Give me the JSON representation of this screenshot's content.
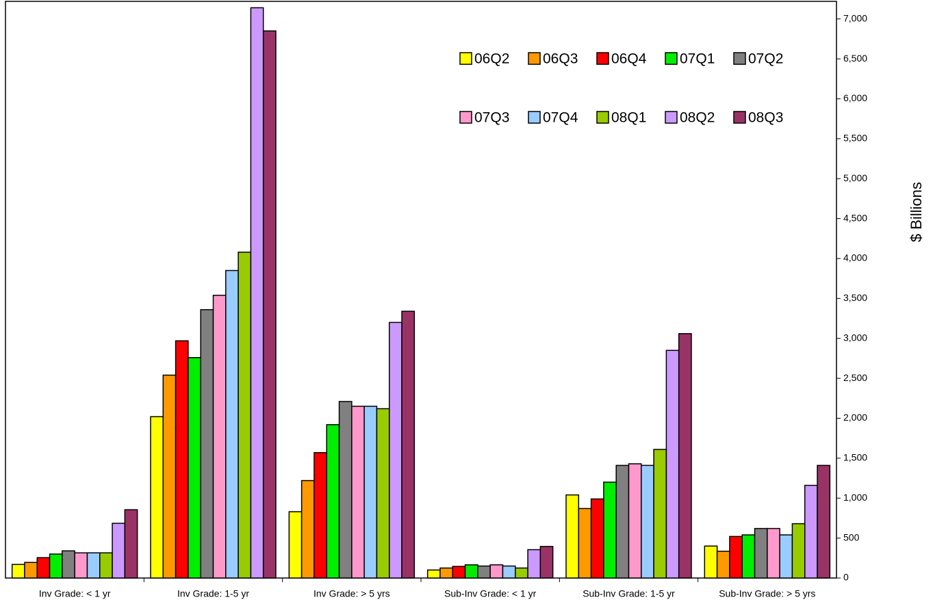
{
  "chart_data": {
    "type": "bar",
    "y_label": "$ Billions",
    "categories": [
      "Inv Grade: < 1 yr",
      "Inv Grade: 1-5 yr",
      "Inv Grade: > 5 yrs",
      "Sub-Inv Grade: < 1 yr",
      "Sub-Inv Grade: 1-5 yr",
      "Sub-Inv Grade: > 5 yrs"
    ],
    "series": [
      {
        "name": "06Q2",
        "color": "#ffff00",
        "values": [
          170,
          2020,
          830,
          100,
          1040,
          400
        ]
      },
      {
        "name": "06Q3",
        "color": "#ff9900",
        "values": [
          195,
          2540,
          1220,
          125,
          870,
          335
        ]
      },
      {
        "name": "06Q4",
        "color": "#ff0000",
        "values": [
          255,
          2970,
          1570,
          145,
          990,
          520
        ]
      },
      {
        "name": "07Q1",
        "color": "#00ee00",
        "values": [
          300,
          2760,
          1920,
          165,
          1200,
          540
        ]
      },
      {
        "name": "07Q2",
        "color": "#808080",
        "values": [
          340,
          3360,
          2210,
          150,
          1410,
          620
        ]
      },
      {
        "name": "07Q3",
        "color": "#ff99cc",
        "values": [
          315,
          3540,
          2150,
          165,
          1430,
          620
        ]
      },
      {
        "name": "07Q4",
        "color": "#99ccff",
        "values": [
          315,
          3850,
          2150,
          150,
          1410,
          540
        ]
      },
      {
        "name": "08Q1",
        "color": "#99cc00",
        "values": [
          315,
          4080,
          2120,
          125,
          1610,
          680
        ]
      },
      {
        "name": "08Q2",
        "color": "#cc99ff",
        "values": [
          685,
          7140,
          3200,
          355,
          2850,
          1160
        ]
      },
      {
        "name": "08Q3",
        "color": "#993366",
        "values": [
          855,
          6850,
          3340,
          395,
          3060,
          1410
        ]
      }
    ],
    "ylim": [
      0,
      7220
    ],
    "yticks": [
      0,
      500,
      {
        "value": 1000,
        "label": "1,000"
      },
      {
        "value": 1500,
        "label": "1,500"
      },
      {
        "value": 2000,
        "label": "2,000"
      },
      {
        "value": 2500,
        "label": "2,500"
      },
      {
        "value": 3000,
        "label": "3,000"
      },
      {
        "value": 3500,
        "label": "3,500"
      },
      {
        "value": 4000,
        "label": "4,000"
      },
      {
        "value": 4500,
        "label": "4,500"
      },
      {
        "value": 5000,
        "label": "5,000"
      },
      {
        "value": 5500,
        "label": "5,500"
      },
      {
        "value": 6000,
        "label": "6,000"
      },
      {
        "value": 6500,
        "label": "6,500"
      },
      {
        "value": 7000,
        "label": "7,000"
      }
    ],
    "grid": false
  }
}
